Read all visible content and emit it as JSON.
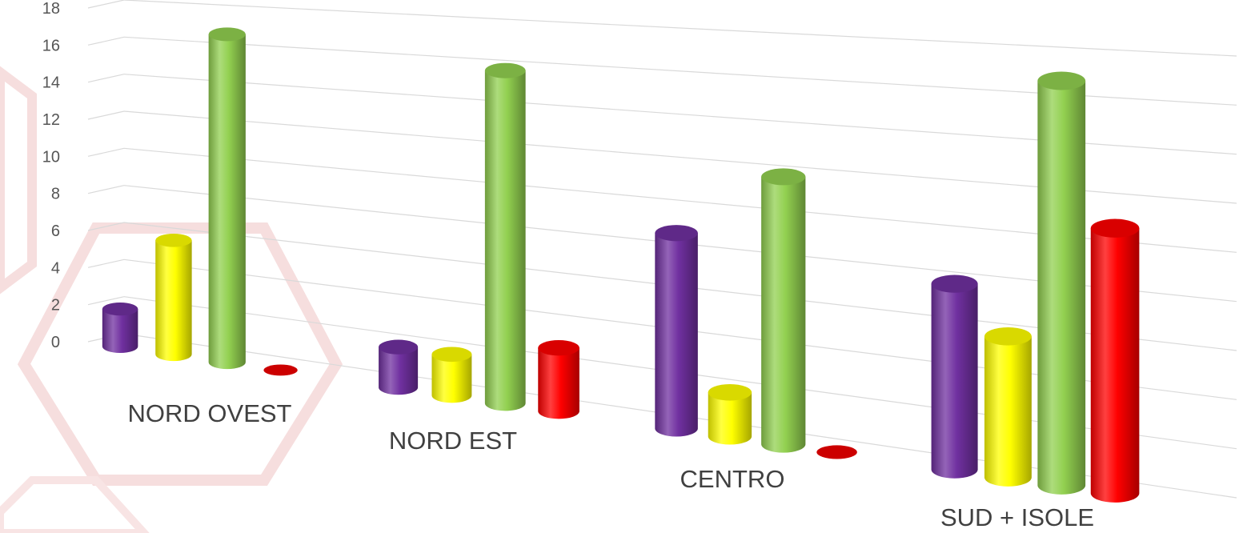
{
  "chart_data": {
    "type": "bar",
    "style": "3d-cylinder",
    "categories": [
      "NORD OVEST",
      "NORD EST",
      "CENTRO",
      "SUD + ISOLE"
    ],
    "series": [
      {
        "color": "#7030a0",
        "values": [
          2,
          2,
          9,
          8
        ]
      },
      {
        "color": "#ffff00",
        "values": [
          6,
          2,
          2,
          6
        ]
      },
      {
        "color": "#92d050",
        "values": [
          17,
          16,
          12,
          17
        ]
      },
      {
        "color": "#ff0000",
        "values": [
          0,
          3,
          0,
          11
        ]
      }
    ],
    "y_ticks": [
      "0",
      "2",
      "4",
      "6",
      "8",
      "10",
      "12",
      "14",
      "16",
      "18"
    ],
    "ylim": [
      0,
      18
    ],
    "grid": true,
    "legend": "none"
  }
}
